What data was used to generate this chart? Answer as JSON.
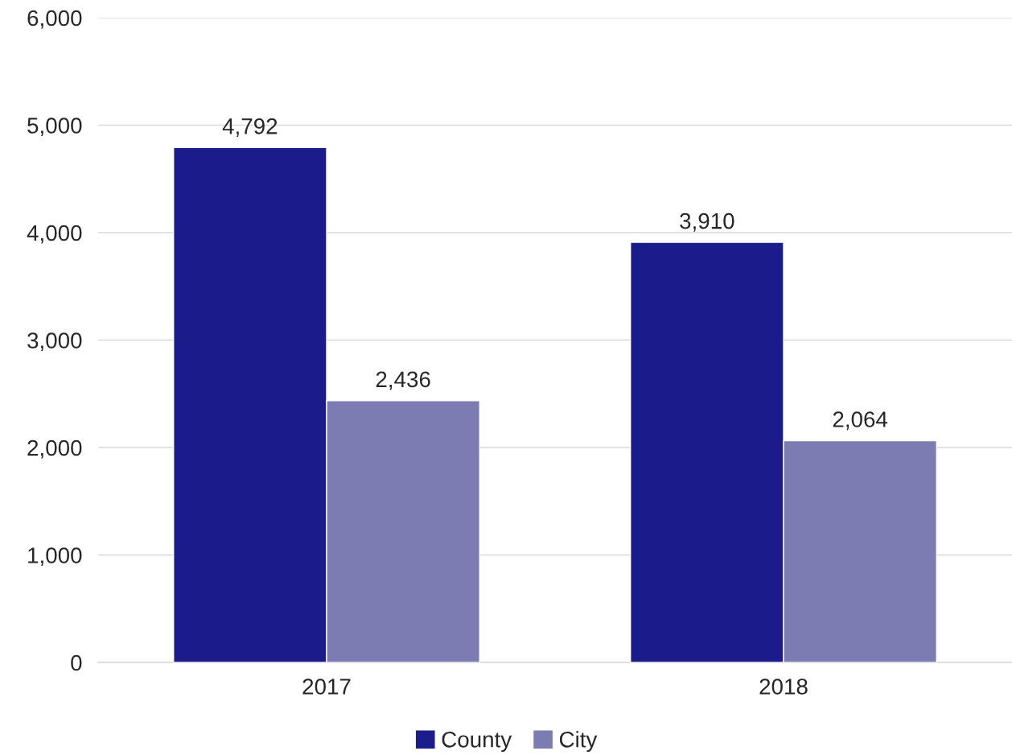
{
  "chart_data": {
    "type": "bar",
    "categories": [
      "2017",
      "2018"
    ],
    "series": [
      {
        "name": "County",
        "color": "#1b1b8c",
        "values": [
          4792,
          3910
        ],
        "value_labels": [
          "4,792",
          "3,910"
        ]
      },
      {
        "name": "City",
        "color": "#7c7cb2",
        "values": [
          2436,
          2064
        ],
        "value_labels": [
          "2,436",
          "2,064"
        ]
      }
    ],
    "ylim": [
      0,
      6000
    ],
    "yticks": [
      {
        "value": 0,
        "label": "0"
      },
      {
        "value": 1000,
        "label": "1,000"
      },
      {
        "value": 2000,
        "label": "2,000"
      },
      {
        "value": 3000,
        "label": "3,000"
      },
      {
        "value": 4000,
        "label": "4,000"
      },
      {
        "value": 5000,
        "label": "5,000"
      },
      {
        "value": 6000,
        "label": "6,000"
      }
    ],
    "grid": "y",
    "legend": "bottom"
  }
}
